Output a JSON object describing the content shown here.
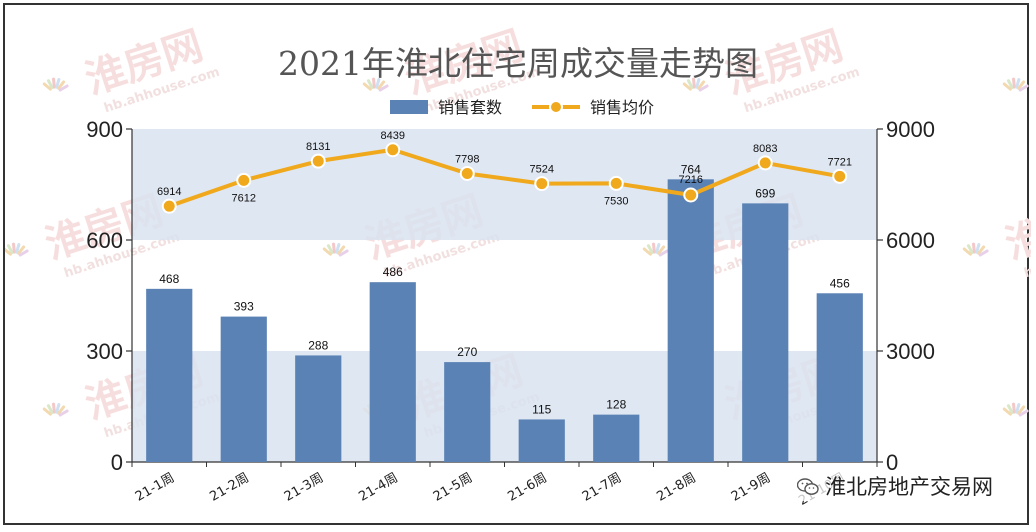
{
  "chart_data": {
    "type": "bar",
    "title": "2021年淮北住宅周成交量走势图",
    "categories": [
      "21-1周",
      "21-2周",
      "21-3周",
      "21-4周",
      "21-5周",
      "21-6周",
      "21-7周",
      "21-8周",
      "21-9周",
      "21-10周"
    ],
    "series": [
      {
        "name": "销售套数",
        "type": "bar",
        "axis": "left",
        "color": "#5b82b5",
        "values": [
          468,
          393,
          288,
          486,
          270,
          115,
          128,
          764,
          699,
          456
        ]
      },
      {
        "name": "销售均价",
        "type": "line",
        "axis": "right",
        "color": "#f0a81c",
        "values": [
          6914,
          7612,
          8131,
          8439,
          7798,
          7524,
          7530,
          7216,
          8083,
          7721
        ]
      }
    ],
    "y_left": {
      "ylim": [
        0,
        900
      ],
      "ticks": [
        "0",
        "300",
        "600",
        "900"
      ]
    },
    "y_right": {
      "ylim": [
        0,
        9000
      ],
      "ticks": [
        "0",
        "3000",
        "6000",
        "9000"
      ]
    },
    "legend_position": "top",
    "band_color": "#d9e3f0"
  },
  "watermark": {
    "brand": "淮房网",
    "url": "hb.ahhouse.com"
  },
  "footer": {
    "source_label": "淮北房地产交易网"
  }
}
